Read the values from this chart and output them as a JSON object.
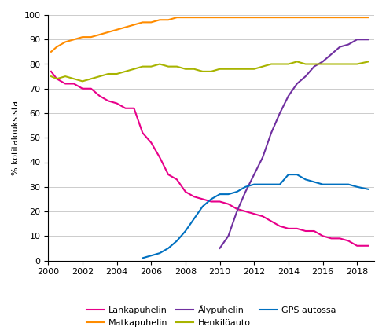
{
  "title": "",
  "ylabel": "% kotitalouksista",
  "ylim": [
    0,
    100
  ],
  "yticks": [
    0,
    10,
    20,
    30,
    40,
    50,
    60,
    70,
    80,
    90,
    100
  ],
  "xticks": [
    2000,
    2002,
    2004,
    2006,
    2008,
    2010,
    2012,
    2014,
    2016,
    2018
  ],
  "background_color": "#ffffff",
  "grid_color": "#cccccc",
  "series": {
    "Lankapuhelin": {
      "color": "#e8008a",
      "x": [
        2000.17,
        2000.5,
        2001,
        2001.5,
        2002,
        2002.5,
        2003,
        2003.5,
        2004,
        2004.5,
        2005,
        2005.5,
        2006,
        2006.5,
        2007,
        2007.5,
        2008,
        2008.5,
        2009,
        2009.5,
        2010,
        2010.5,
        2011,
        2011.5,
        2012,
        2012.5,
        2013,
        2013.5,
        2014,
        2014.5,
        2015,
        2015.5,
        2016,
        2016.5,
        2017,
        2017.5,
        2018,
        2018.67
      ],
      "y": [
        77,
        74,
        72,
        72,
        70,
        70,
        67,
        65,
        64,
        62,
        62,
        52,
        48,
        42,
        35,
        33,
        28,
        26,
        25,
        24,
        24,
        23,
        21,
        20,
        19,
        18,
        16,
        14,
        13,
        13,
        12,
        12,
        10,
        9,
        9,
        8,
        6,
        6
      ]
    },
    "Matkapuhelin": {
      "color": "#ff8c00",
      "x": [
        2000.17,
        2000.5,
        2001,
        2001.5,
        2002,
        2002.5,
        2003,
        2003.5,
        2004,
        2004.5,
        2005,
        2005.5,
        2006,
        2006.5,
        2007,
        2007.5,
        2008,
        2008.5,
        2009,
        2009.5,
        2010,
        2010.5,
        2011,
        2011.5,
        2012,
        2012.5,
        2013,
        2013.5,
        2014,
        2014.5,
        2015,
        2015.5,
        2016,
        2016.5,
        2017,
        2017.5,
        2018,
        2018.67
      ],
      "y": [
        85,
        87,
        89,
        90,
        91,
        91,
        92,
        93,
        94,
        95,
        96,
        97,
        97,
        98,
        98,
        99,
        99,
        99,
        99,
        99,
        99,
        99,
        99,
        99,
        99,
        99,
        99,
        99,
        99,
        99,
        99,
        99,
        99,
        99,
        99,
        99,
        99,
        99
      ]
    },
    "Alypuhelin": {
      "color": "#7030a0",
      "x": [
        2010,
        2010.5,
        2011,
        2011.5,
        2012,
        2012.5,
        2013,
        2013.5,
        2014,
        2014.5,
        2015,
        2015.5,
        2016,
        2016.5,
        2017,
        2017.5,
        2018,
        2018.67
      ],
      "y": [
        5,
        10,
        20,
        28,
        35,
        42,
        52,
        60,
        67,
        72,
        75,
        79,
        81,
        84,
        87,
        88,
        90,
        90
      ]
    },
    "Henkiloauto": {
      "color": "#a8b400",
      "x": [
        2000.17,
        2000.5,
        2001,
        2001.5,
        2002,
        2002.5,
        2003,
        2003.5,
        2004,
        2004.5,
        2005,
        2005.5,
        2006,
        2006.5,
        2007,
        2007.5,
        2008,
        2008.5,
        2009,
        2009.5,
        2010,
        2010.5,
        2011,
        2011.5,
        2012,
        2012.5,
        2013,
        2013.5,
        2014,
        2014.5,
        2015,
        2015.5,
        2016,
        2016.5,
        2017,
        2017.5,
        2018,
        2018.67
      ],
      "y": [
        75,
        74,
        75,
        74,
        73,
        74,
        75,
        76,
        76,
        77,
        78,
        79,
        79,
        80,
        79,
        79,
        78,
        78,
        77,
        77,
        78,
        78,
        78,
        78,
        78,
        79,
        80,
        80,
        80,
        81,
        80,
        80,
        80,
        80,
        80,
        80,
        80,
        81
      ]
    },
    "GPS autossa": {
      "color": "#0070c0",
      "x": [
        2005.5,
        2006,
        2006.5,
        2007,
        2007.5,
        2008,
        2008.5,
        2009,
        2009.5,
        2010,
        2010.5,
        2011,
        2011.5,
        2012,
        2012.5,
        2013,
        2013.5,
        2014,
        2014.5,
        2015,
        2015.5,
        2016,
        2016.5,
        2017,
        2017.5,
        2018,
        2018.67
      ],
      "y": [
        1,
        2,
        3,
        5,
        8,
        12,
        17,
        22,
        25,
        27,
        27,
        28,
        30,
        31,
        31,
        31,
        31,
        35,
        35,
        33,
        32,
        31,
        31,
        31,
        31,
        30,
        29
      ]
    }
  },
  "legend": [
    {
      "label": "Lankapuhelin",
      "color": "#e8008a"
    },
    {
      "label": "Matkapuhelin",
      "color": "#ff8c00"
    },
    {
      "label": "Älypuhelin",
      "color": "#7030a0"
    },
    {
      "label": "Henkilöauto",
      "color": "#a8b400"
    },
    {
      "label": "GPS autossa",
      "color": "#0070c0"
    }
  ]
}
